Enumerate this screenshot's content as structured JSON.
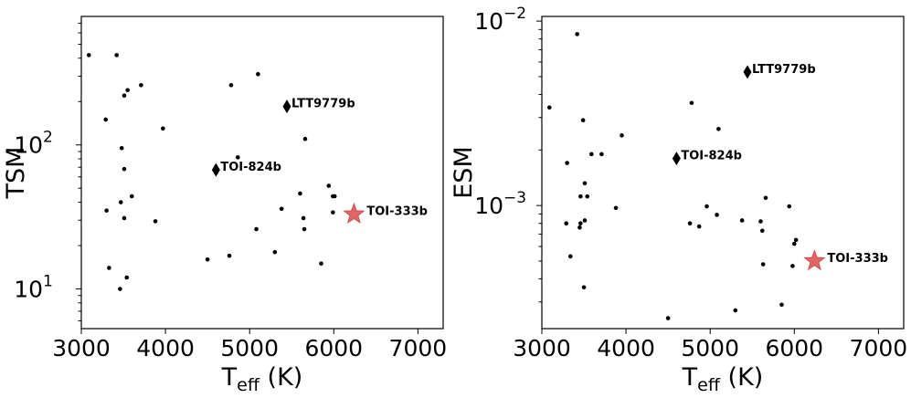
{
  "chart_data": [
    {
      "type": "scatter",
      "xlabel": "T",
      "xlabel_sub": "eff",
      "xlabel_unit": " (K)",
      "ylabel": "TSM",
      "xlim": [
        3000,
        7300
      ],
      "ylim": [
        5.3,
        780
      ],
      "yscale": "log",
      "xticks": [
        3000,
        4000,
        5000,
        6000,
        7000
      ],
      "yticks": [
        {
          "value": 10,
          "base": "10",
          "exp": "1"
        },
        {
          "value": 100,
          "base": "10",
          "exp": "2"
        }
      ],
      "grid": false,
      "points": [
        {
          "x": 3090,
          "y": 420
        },
        {
          "x": 3420,
          "y": 420
        },
        {
          "x": 3710,
          "y": 260
        },
        {
          "x": 3550,
          "y": 240
        },
        {
          "x": 3510,
          "y": 220
        },
        {
          "x": 3290,
          "y": 150
        },
        {
          "x": 3970,
          "y": 130
        },
        {
          "x": 3480,
          "y": 95
        },
        {
          "x": 3510,
          "y": 68
        },
        {
          "x": 3600,
          "y": 44
        },
        {
          "x": 3470,
          "y": 40
        },
        {
          "x": 3300,
          "y": 35
        },
        {
          "x": 3510,
          "y": 31
        },
        {
          "x": 3880,
          "y": 29.5
        },
        {
          "x": 3330,
          "y": 14
        },
        {
          "x": 3540,
          "y": 12
        },
        {
          "x": 3460,
          "y": 10
        },
        {
          "x": 4500,
          "y": 16
        },
        {
          "x": 4760,
          "y": 17
        },
        {
          "x": 4780,
          "y": 260
        },
        {
          "x": 4860,
          "y": 82
        },
        {
          "x": 5080,
          "y": 26
        },
        {
          "x": 5100,
          "y": 310
        },
        {
          "x": 5300,
          "y": 18
        },
        {
          "x": 5380,
          "y": 36
        },
        {
          "x": 5600,
          "y": 46
        },
        {
          "x": 5640,
          "y": 31
        },
        {
          "x": 5650,
          "y": 26
        },
        {
          "x": 5660,
          "y": 110
        },
        {
          "x": 5850,
          "y": 15
        },
        {
          "x": 5940,
          "y": 52
        },
        {
          "x": 5990,
          "y": 44
        },
        {
          "x": 6010,
          "y": 44
        },
        {
          "x": 5990,
          "y": 34
        }
      ],
      "highlights": [
        {
          "marker": "diamond",
          "label": "LTT9779b",
          "x": 5443,
          "y": 185
        },
        {
          "marker": "diamond",
          "label": "TOI-824b",
          "x": 4600,
          "y": 67
        },
        {
          "marker": "star",
          "label": "TOI-333b",
          "x": 6240,
          "y": 33
        }
      ],
      "star_color": "#e06666",
      "point_color": "#000000"
    },
    {
      "type": "scatter",
      "xlabel": "T",
      "xlabel_sub": "eff",
      "xlabel_unit": " (K)",
      "ylabel": "ESM",
      "xlim": [
        3000,
        7300
      ],
      "ylim": [
        0.000215,
        0.0106
      ],
      "yscale": "log",
      "xticks": [
        3000,
        4000,
        5000,
        6000,
        7000
      ],
      "yticks": [
        {
          "value": 0.001,
          "base": "10",
          "exp": "−3"
        },
        {
          "value": 0.01,
          "base": "10",
          "exp": "−2"
        }
      ],
      "grid": false,
      "points": [
        {
          "x": 3420,
          "y": 0.0085
        },
        {
          "x": 3090,
          "y": 0.0034
        },
        {
          "x": 3490,
          "y": 0.0029
        },
        {
          "x": 3950,
          "y": 0.0024
        },
        {
          "x": 3590,
          "y": 0.0019
        },
        {
          "x": 3710,
          "y": 0.0019
        },
        {
          "x": 3300,
          "y": 0.0017
        },
        {
          "x": 3510,
          "y": 0.00132
        },
        {
          "x": 3460,
          "y": 0.00112
        },
        {
          "x": 3540,
          "y": 0.00112
        },
        {
          "x": 3880,
          "y": 0.00097
        },
        {
          "x": 3510,
          "y": 0.00083
        },
        {
          "x": 3290,
          "y": 0.0008
        },
        {
          "x": 3460,
          "y": 0.0008
        },
        {
          "x": 3450,
          "y": 0.00076
        },
        {
          "x": 3340,
          "y": 0.00053
        },
        {
          "x": 3500,
          "y": 0.00036
        },
        {
          "x": 4500,
          "y": 0.000245
        },
        {
          "x": 4760,
          "y": 0.0008
        },
        {
          "x": 4780,
          "y": 0.0036
        },
        {
          "x": 4870,
          "y": 0.00077
        },
        {
          "x": 4960,
          "y": 0.00099
        },
        {
          "x": 5080,
          "y": 0.00089
        },
        {
          "x": 5100,
          "y": 0.0026
        },
        {
          "x": 5300,
          "y": 0.00027
        },
        {
          "x": 5380,
          "y": 0.00083
        },
        {
          "x": 5600,
          "y": 0.00082
        },
        {
          "x": 5620,
          "y": 0.00073
        },
        {
          "x": 5630,
          "y": 0.00048
        },
        {
          "x": 5660,
          "y": 0.0011
        },
        {
          "x": 5850,
          "y": 0.00029
        },
        {
          "x": 5940,
          "y": 0.00099
        },
        {
          "x": 5980,
          "y": 0.00047
        },
        {
          "x": 6000,
          "y": 0.00062
        },
        {
          "x": 6020,
          "y": 0.00065
        }
      ],
      "highlights": [
        {
          "marker": "diamond",
          "label": "LTT9779b",
          "x": 5443,
          "y": 0.0053
        },
        {
          "marker": "diamond",
          "label": "TOI-824b",
          "x": 4600,
          "y": 0.0018
        },
        {
          "marker": "star",
          "label": "TOI-333b",
          "x": 6240,
          "y": 0.0005
        }
      ],
      "star_color": "#e06666",
      "point_color": "#000000"
    }
  ]
}
